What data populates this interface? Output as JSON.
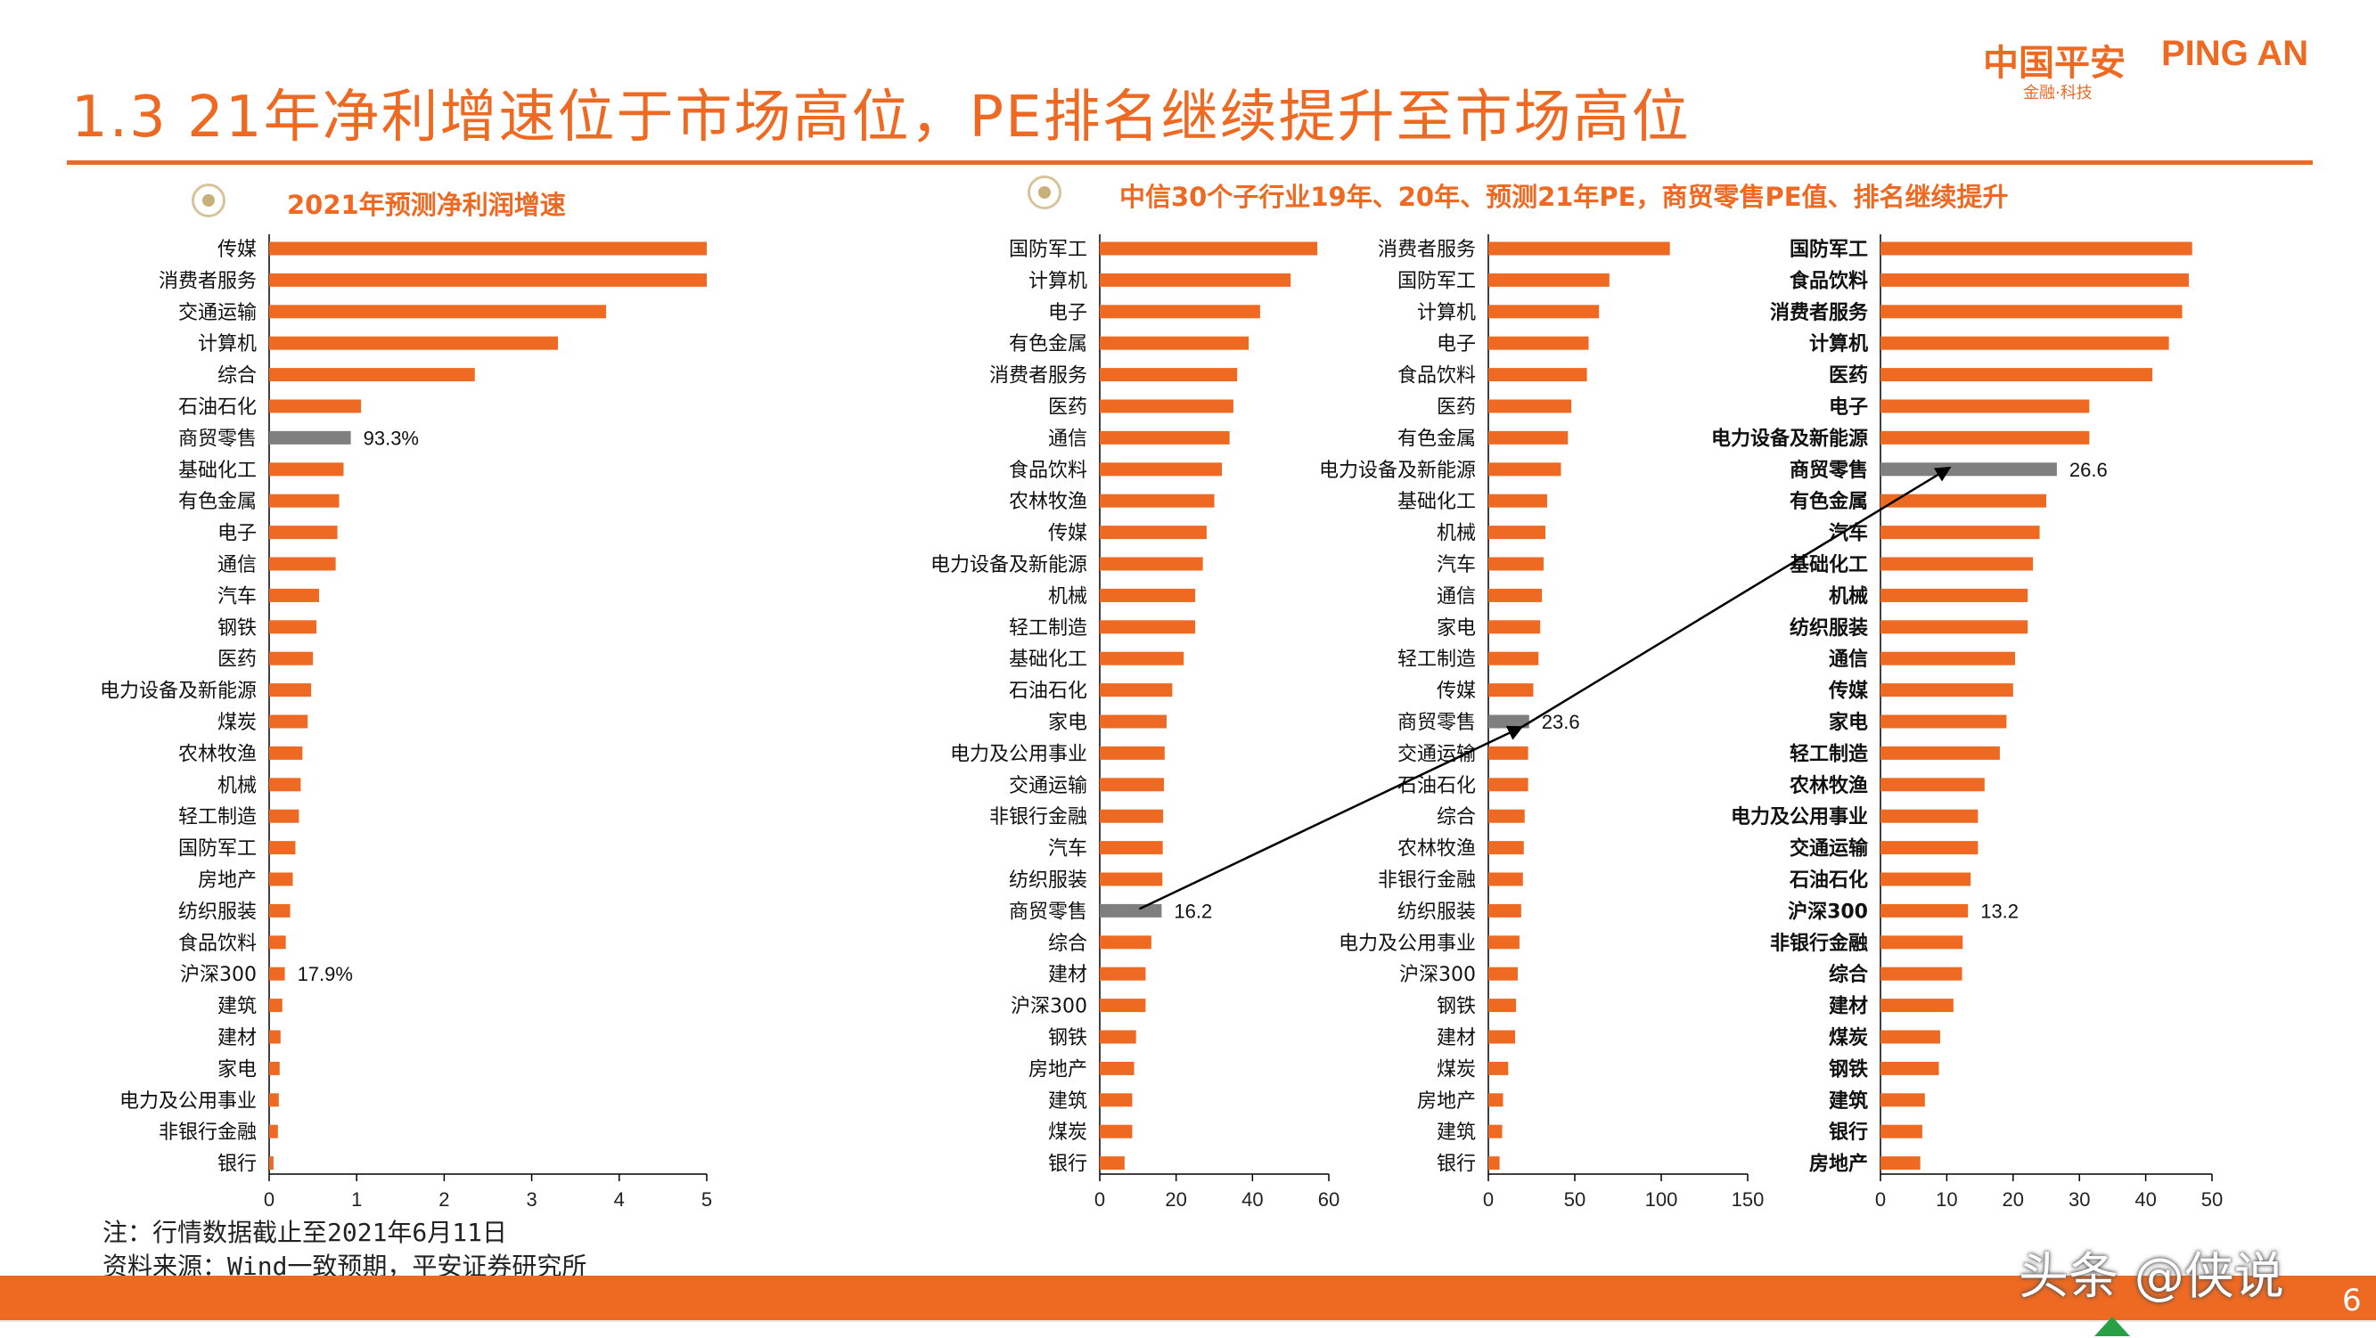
{
  "page": {
    "title": "1.3 21年净利增速位于市场高位，PE排名继续提升至市场高位",
    "logo_cn": "中国平安",
    "logo_en": "PING AN",
    "logo_sub": "金融·科技",
    "section_left_title": "2021年预测净利润增速",
    "section_right_title": "中信30个子行业19年、20年、预测21年PE，商贸零售PE值、排名继续提升",
    "note": "注：行情数据截止至2021年6月11日",
    "source": "资料来源：Wind一致预期，平安证券研究所",
    "watermark": "头条 @侠说",
    "page_number": "6"
  },
  "colors": {
    "accent": "#EE6A22",
    "highlight": "#7F7F7F",
    "arrow": "#000000"
  },
  "chart_data": [
    {
      "type": "bar",
      "orientation": "horizontal",
      "title": "2021年预测净利润增速",
      "categories": [
        "传媒",
        "消费者服务",
        "交通运输",
        "计算机",
        "综合",
        "石油石化",
        "商贸零售",
        "基础化工",
        "有色金属",
        "电子",
        "通信",
        "汽车",
        "钢铁",
        "医药",
        "电力设备及新能源",
        "煤炭",
        "农林牧渔",
        "机械",
        "轻工制造",
        "国防军工",
        "房地产",
        "纺织服装",
        "食品饮料",
        "沪深300",
        "建筑",
        "建材",
        "家电",
        "电力及公用事业",
        "非银行金融",
        "银行"
      ],
      "values": [
        5.0,
        5.0,
        3.85,
        3.3,
        2.35,
        1.05,
        0.933,
        0.85,
        0.8,
        0.78,
        0.76,
        0.57,
        0.54,
        0.5,
        0.48,
        0.44,
        0.38,
        0.36,
        0.34,
        0.3,
        0.27,
        0.24,
        0.19,
        0.179,
        0.15,
        0.13,
        0.12,
        0.11,
        0.1,
        0.05
      ],
      "highlight": "商贸零售",
      "data_labels": [
        {
          "category": "商贸零售",
          "label": "93.3%"
        },
        {
          "category": "沪深300",
          "label": "17.9%"
        }
      ],
      "xlim": [
        0,
        5
      ],
      "xticks": [
        "0",
        "1",
        "2",
        "3",
        "4",
        "5"
      ],
      "grid": false
    },
    {
      "type": "bar",
      "orientation": "horizontal",
      "categories": [
        "国防军工",
        "计算机",
        "电子",
        "有色金属",
        "消费者服务",
        "医药",
        "通信",
        "食品饮料",
        "农林牧渔",
        "传媒",
        "电力设备及新能源",
        "机械",
        "轻工制造",
        "基础化工",
        "石油石化",
        "家电",
        "电力及公用事业",
        "交通运输",
        "非银行金融",
        "汽车",
        "纺织服装",
        "商贸零售",
        "综合",
        "建材",
        "沪深300",
        "钢铁",
        "房地产",
        "建筑",
        "煤炭",
        "银行"
      ],
      "values": [
        57,
        50,
        42,
        39,
        36,
        35,
        34,
        32,
        30,
        28,
        27,
        25,
        25,
        22,
        19,
        17.5,
        17,
        16.8,
        16.6,
        16.5,
        16.4,
        16.2,
        13.5,
        12,
        12,
        9.5,
        9,
        8.5,
        8.5,
        6.5
      ],
      "highlight": "商贸零售",
      "data_labels": [
        {
          "category": "商贸零售",
          "label": "16.2"
        }
      ],
      "xlim": [
        0,
        60
      ],
      "xticks": [
        "0",
        "20",
        "40",
        "60"
      ],
      "grid": false
    },
    {
      "type": "bar",
      "orientation": "horizontal",
      "categories": [
        "消费者服务",
        "国防军工",
        "计算机",
        "电子",
        "食品饮料",
        "医药",
        "有色金属",
        "电力设备及新能源",
        "基础化工",
        "机械",
        "汽车",
        "通信",
        "家电",
        "轻工制造",
        "传媒",
        "商贸零售",
        "交通运输",
        "石油石化",
        "综合",
        "农林牧渔",
        "非银行金融",
        "纺织服装",
        "电力及公用事业",
        "沪深300",
        "钢铁",
        "建材",
        "煤炭",
        "房地产",
        "建筑",
        "银行"
      ],
      "values": [
        105,
        70,
        64,
        58,
        57,
        48,
        46,
        42,
        34,
        33,
        32,
        31,
        30,
        29,
        26,
        23.6,
        23,
        23,
        21,
        20.5,
        20,
        19,
        18,
        17,
        16,
        15.5,
        11.5,
        8.5,
        8,
        6.5
      ],
      "highlight": "商贸零售",
      "data_labels": [
        {
          "category": "商贸零售",
          "label": "23.6"
        }
      ],
      "xlim": [
        0,
        150
      ],
      "xticks": [
        "0",
        "50",
        "100",
        "150"
      ],
      "grid": false
    },
    {
      "type": "bar",
      "orientation": "horizontal",
      "categories": [
        "国防军工",
        "食品饮料",
        "消费者服务",
        "计算机",
        "医药",
        "电子",
        "电力设备及新能源",
        "商贸零售",
        "有色金属",
        "汽车",
        "基础化工",
        "机械",
        "纺织服装",
        "通信",
        "传媒",
        "家电",
        "轻工制造",
        "农林牧渔",
        "电力及公用事业",
        "交通运输",
        "石油石化",
        "沪深300",
        "非银行金融",
        "综合",
        "建材",
        "煤炭",
        "钢铁",
        "建筑",
        "银行",
        "房地产"
      ],
      "values": [
        47,
        46.5,
        45.5,
        43.5,
        41,
        31.5,
        31.5,
        26.6,
        25,
        24,
        23,
        22.2,
        22.2,
        20.3,
        20,
        19,
        18,
        15.7,
        14.7,
        14.7,
        13.6,
        13.2,
        12.4,
        12.3,
        11,
        9,
        8.8,
        6.7,
        6.3,
        6
      ],
      "highlight": "商贸零售",
      "data_labels": [
        {
          "category": "商贸零售",
          "label": "26.6"
        },
        {
          "category": "沪深300",
          "label": "13.2"
        }
      ],
      "xlim": [
        0,
        50
      ],
      "xticks": [
        "0",
        "10",
        "20",
        "30",
        "40",
        "50"
      ],
      "bold_labels": true,
      "grid": false
    }
  ]
}
